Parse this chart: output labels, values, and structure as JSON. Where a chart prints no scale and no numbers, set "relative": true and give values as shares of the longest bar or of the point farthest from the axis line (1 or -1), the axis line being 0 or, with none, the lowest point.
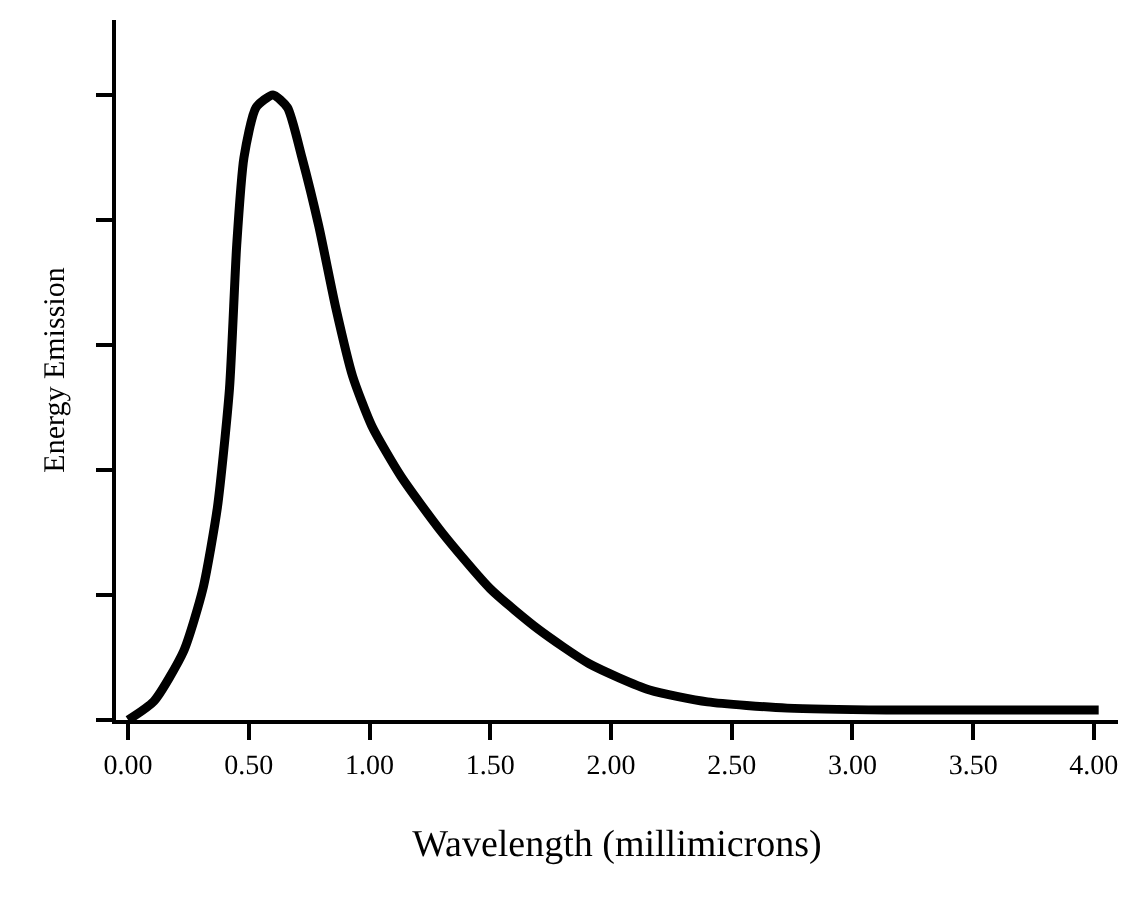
{
  "chart_data": {
    "type": "line",
    "relative": true,
    "xlabel": "Wavelength (millimicrons)",
    "ylabel": "Energy Emission",
    "x": [
      0,
      0.107,
      0.23,
      0.31,
      0.37,
      0.42,
      0.45,
      0.48,
      0.53,
      0.6,
      0.66,
      0.72,
      0.79,
      0.86,
      0.93,
      1.01,
      1.13,
      1.3,
      1.5,
      1.7,
      1.91,
      2.16,
      2.4,
      2.73,
      3.14,
      3.55,
      4.02
    ],
    "series": [
      {
        "color": "#000000",
        "values": [
          0,
          0.03,
          0.11,
          0.21,
          0.34,
          0.53,
          0.76,
          0.9,
          0.98,
          1.0,
          0.98,
          0.9,
          0.79,
          0.66,
          0.55,
          0.47,
          0.39,
          0.3,
          0.21,
          0.145,
          0.09,
          0.048,
          0.029,
          0.019,
          0.016,
          0.016,
          0.016
        ]
      }
    ],
    "xlim": [
      -0.05,
      4.1
    ],
    "xticks": [
      {
        "value": 0,
        "label": "0.00"
      },
      {
        "value": 0.5,
        "label": "0.50"
      },
      {
        "value": 1,
        "label": "1.00"
      },
      {
        "value": 1.5,
        "label": "1.50"
      },
      {
        "value": 2,
        "label": "2.00"
      },
      {
        "value": 2.5,
        "label": "2.50"
      },
      {
        "value": 3,
        "label": "3.00"
      },
      {
        "value": 3.5,
        "label": "3.50"
      },
      {
        "value": 4,
        "label": "4.00"
      }
    ],
    "legend": false,
    "marker": "none",
    "line_style": "solid"
  }
}
